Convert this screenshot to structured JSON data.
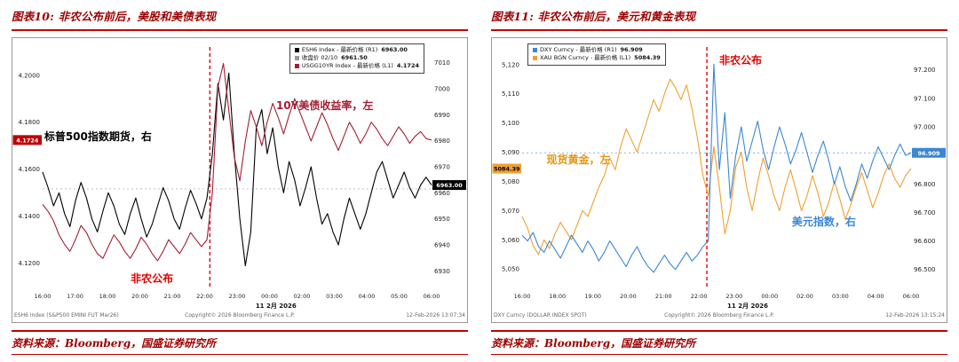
{
  "page": {
    "background": "#ffffff",
    "accent_red": "#c00000",
    "title_color": "#9e0000"
  },
  "panels": [
    {
      "title": "图表10: 非农公布前后，美股和美债表现",
      "source": "资料来源：Bloomberg，国盛证券研究所"
    },
    {
      "title": "图表11: 非农公布前后，美元和黄金表现",
      "source": "资料来源：Bloomberg，国盛证券研究所"
    }
  ],
  "chart_data": [
    {
      "type": "line",
      "title": "非农公布前后，美股和美债表现",
      "legend": [
        {
          "label": "ESH6 Index - 最新价格 (R1)",
          "value": "6963.00",
          "color": "#000000"
        },
        {
          "label": "收盘价 02/10",
          "value": "6961.50",
          "color": "#999999"
        },
        {
          "label": "USGG10YR Index - 最新价格 (L1)",
          "value": "4.1724",
          "color": "#a41e34"
        }
      ],
      "left_axis": {
        "range": [
          4.11,
          4.212
        ],
        "tick_values": [
          4.2,
          4.18,
          4.16,
          4.14,
          4.12
        ],
        "tick_labels": [
          "4.2000",
          "4.1800",
          "4.1600",
          "4.1400",
          "4.1200"
        ],
        "box": {
          "v": 4.1724,
          "label": "4.1724",
          "bg": "#c00000",
          "fg": "#ffffff"
        }
      },
      "right_axis": {
        "range": [
          6924,
          7016
        ],
        "tick_values": [
          7010,
          7000,
          6990,
          6980,
          6970,
          6960,
          6950,
          6940,
          6930
        ],
        "tick_labels": [
          "7010",
          "7000",
          "6990",
          "6980",
          "6970",
          "6960",
          "6950",
          "6940",
          "6930"
        ],
        "box": {
          "v": 6963,
          "label": "6963.00",
          "bg": "#000000",
          "fg": "#ffffff"
        }
      },
      "x_labels": [
        "16:00",
        "17:00",
        "18:00",
        "20:00",
        "21:00",
        "22:00",
        "23:00",
        "00:00",
        "02:00",
        "03:00",
        "04:00",
        "05:00",
        "06:00"
      ],
      "date_label": "11 2月 2026",
      "date_x": 0.6,
      "event_x": 0.43,
      "event_color": "#e60000",
      "ref_lines": [
        {
          "v": 6961.5,
          "axis": "right",
          "color": "#888888"
        }
      ],
      "series": [
        {
          "name": "标普500指数期货",
          "axis": "right",
          "color": "#000000",
          "values": [
            6968,
            6962,
            6955,
            6960,
            6952,
            6947,
            6957,
            6964,
            6958,
            6950,
            6945,
            6953,
            6960,
            6955,
            6948,
            6944,
            6952,
            6958,
            6950,
            6943,
            6948,
            6955,
            6962,
            6957,
            6950,
            6946,
            6954,
            6961,
            6956,
            6950,
            6958,
            6975,
            7002,
            6988,
            7006,
            6975,
            6950,
            6932,
            6945,
            6985,
            6992,
            6975,
            6985,
            6970,
            6960,
            6972,
            6965,
            6955,
            6962,
            6970,
            6958,
            6948,
            6952,
            6945,
            6940,
            6950,
            6958,
            6952,
            6946,
            6952,
            6960,
            6968,
            6972,
            6965,
            6958,
            6963,
            6968,
            6962,
            6958,
            6963,
            6966,
            6963
          ]
        },
        {
          "name": "10Y美债收益率",
          "axis": "left",
          "color": "#a41e34",
          "values": [
            4.145,
            4.142,
            4.138,
            4.132,
            4.128,
            4.125,
            4.13,
            4.136,
            4.133,
            4.128,
            4.124,
            4.122,
            4.127,
            4.132,
            4.129,
            4.125,
            4.122,
            4.126,
            4.131,
            4.128,
            4.124,
            4.121,
            4.125,
            4.13,
            4.127,
            4.124,
            4.128,
            4.133,
            4.13,
            4.127,
            4.13,
            4.15,
            4.195,
            4.205,
            4.185,
            4.165,
            4.155,
            4.172,
            4.185,
            4.178,
            4.17,
            4.18,
            4.188,
            4.182,
            4.175,
            4.183,
            4.19,
            4.184,
            4.178,
            4.172,
            4.178,
            4.184,
            4.179,
            4.173,
            4.168,
            4.174,
            4.18,
            4.176,
            4.171,
            4.175,
            4.18,
            4.177,
            4.173,
            4.17,
            4.174,
            4.178,
            4.175,
            4.171,
            4.174,
            4.176,
            4.173,
            4.1724
          ]
        }
      ],
      "annotations": [
        {
          "text": "标普500指数期货，右",
          "x": 0.07,
          "y": 0.32,
          "color": "#000000"
        },
        {
          "text": "10Y美债收益率，左",
          "x": 0.58,
          "y": 0.21,
          "color": "#a41e34"
        },
        {
          "text": "非农公布",
          "x": 0.26,
          "y": 0.82,
          "color": "#e60000"
        }
      ],
      "footer_left": "ESH6 Index (S&P500 EMINI FUT Mar26)",
      "footer_right": "12-Feb-2026 13:07:34",
      "copyright": "Copyright© 2026 Bloomberg Finance L.P."
    },
    {
      "type": "line",
      "title": "非农公布前后，美元和黄金表现",
      "legend": [
        {
          "label": "DXY Curncy - 最新价格 (R1)",
          "value": "96.909",
          "color": "#3b87d4"
        },
        {
          "label": "XAU BGN Curncy - 最新价格 (L1)",
          "value": "5084.39",
          "color": "#f0a030"
        }
      ],
      "left_axis": {
        "range": [
          5044,
          5126
        ],
        "tick_values": [
          5120,
          5110,
          5100,
          5090,
          5080,
          5070,
          5060,
          5050
        ],
        "tick_labels": [
          "5,120",
          "5,110",
          "5,100",
          "5,090",
          "5,080",
          "5,070",
          "5,060",
          "5,050"
        ],
        "box": {
          "v": 5084.39,
          "label": "5084.39",
          "bg": "#f0a030",
          "fg": "#000000"
        }
      },
      "right_axis": {
        "range": [
          96.44,
          97.28
        ],
        "tick_values": [
          97.2,
          97.1,
          97.0,
          96.9,
          96.8,
          96.7,
          96.6,
          96.5
        ],
        "tick_labels": [
          "97.200",
          "97.100",
          "97.000",
          "96.900",
          "96.800",
          "96.700",
          "96.600",
          "96.500"
        ],
        "box": {
          "v": 96.909,
          "label": "96.909",
          "bg": "#3b87d4",
          "fg": "#ffffff"
        }
      },
      "x_labels": [
        "16:00",
        "18:00",
        "19:00",
        "20:00",
        "21:00",
        "22:00",
        "23:00",
        "00:00",
        "02:00",
        "03:00",
        "04:00",
        "06:00"
      ],
      "date_label": "11 2月 2026",
      "date_x": 0.58,
      "event_x": 0.475,
      "event_color": "#e60000",
      "ref_lines": [
        {
          "v": 96.909,
          "axis": "right",
          "color": "#3b87d4"
        }
      ],
      "series": [
        {
          "name": "现货黄金",
          "axis": "left",
          "color": "#f0a030",
          "values": [
            5068,
            5064,
            5058,
            5055,
            5060,
            5057,
            5062,
            5066,
            5063,
            5060,
            5065,
            5070,
            5068,
            5073,
            5078,
            5082,
            5088,
            5084,
            5092,
            5098,
            5094,
            5090,
            5096,
            5102,
            5108,
            5104,
            5110,
            5115,
            5112,
            5108,
            5113,
            5105,
            5095,
            5082,
            5075,
            5092,
            5078,
            5062,
            5070,
            5085,
            5090,
            5078,
            5070,
            5080,
            5088,
            5082,
            5075,
            5070,
            5078,
            5084,
            5077,
            5070,
            5075,
            5082,
            5076,
            5068,
            5073,
            5080,
            5074,
            5067,
            5072,
            5078,
            5083,
            5077,
            5071,
            5076,
            5082,
            5086,
            5081,
            5078,
            5082,
            5084.4
          ]
        },
        {
          "name": "美元指数",
          "axis": "right",
          "color": "#3b87d4",
          "values": [
            96.62,
            96.6,
            96.63,
            96.58,
            96.56,
            96.6,
            96.57,
            96.54,
            96.58,
            96.62,
            96.59,
            96.56,
            96.6,
            96.57,
            96.53,
            96.56,
            96.6,
            96.57,
            96.54,
            96.51,
            96.55,
            96.58,
            96.54,
            96.51,
            96.49,
            96.52,
            96.55,
            96.52,
            96.5,
            96.53,
            96.56,
            96.53,
            96.55,
            96.58,
            96.6,
            97.22,
            96.85,
            97.05,
            96.75,
            96.9,
            97.0,
            96.88,
            96.95,
            97.02,
            96.92,
            96.85,
            96.93,
            97.0,
            96.94,
            96.87,
            96.92,
            96.98,
            96.91,
            96.84,
            96.9,
            96.95,
            96.88,
            96.8,
            96.86,
            96.79,
            96.74,
            96.8,
            96.87,
            96.82,
            96.88,
            96.93,
            96.89,
            96.85,
            96.9,
            96.94,
            96.9,
            96.909
          ]
        }
      ],
      "annotations": [
        {
          "text": "现货黄金，左",
          "x": 0.12,
          "y": 0.4,
          "color": "#e8960c"
        },
        {
          "text": "美元指数，右",
          "x": 0.66,
          "y": 0.62,
          "color": "#3b87d4"
        },
        {
          "text": "非农公布",
          "x": 0.5,
          "y": 0.05,
          "color": "#e60000"
        }
      ],
      "footer_left": "DXY Curncy (DOLLAR INDEX SPOT)",
      "footer_right": "12-Feb-2026 13:15:24",
      "copyright": "Copyright© 2026 Bloomberg Finance L.P."
    }
  ]
}
